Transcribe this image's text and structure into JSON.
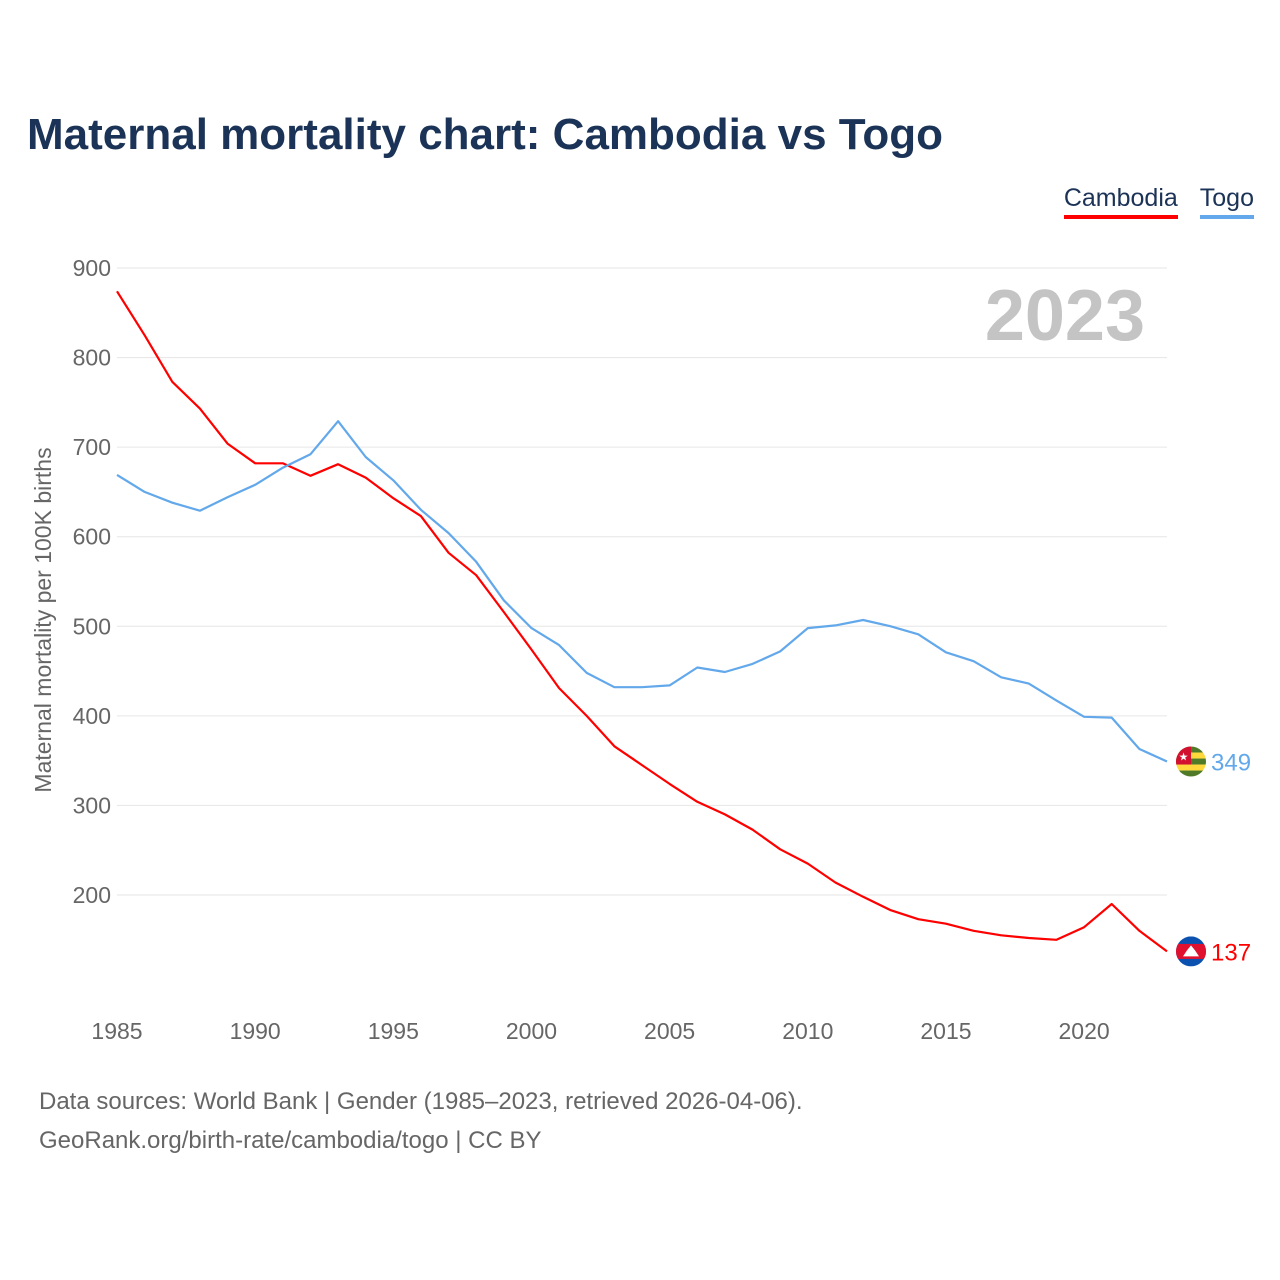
{
  "title": "Maternal mortality chart: Cambodia vs Togo",
  "footer": {
    "line1": "Data sources: World Bank | Gender (1985–2023, retrieved 2026-04-06).",
    "line2": "GeoRank.org/birth-rate/cambodia/togo | CC BY"
  },
  "chart_data": {
    "type": "line",
    "title": "Maternal mortality chart: Cambodia vs Togo",
    "ylabel": "Maternal mortality per 100K births",
    "xlabel": "",
    "year_label": "2023",
    "ylim": [
      100,
      900
    ],
    "yticks": [
      "200",
      "300",
      "400",
      "500",
      "600",
      "700",
      "800",
      "900"
    ],
    "xticks": [
      "1985",
      "1990",
      "1995",
      "2000",
      "2005",
      "2010",
      "2015",
      "2020"
    ],
    "grid": true,
    "legend_position": "top-right",
    "x": [
      1985,
      1986,
      1987,
      1988,
      1989,
      1990,
      1991,
      1992,
      1993,
      1994,
      1995,
      1996,
      1997,
      1998,
      1999,
      2000,
      2001,
      2002,
      2003,
      2004,
      2005,
      2006,
      2007,
      2008,
      2009,
      2010,
      2011,
      2012,
      2013,
      2014,
      2015,
      2016,
      2017,
      2018,
      2019,
      2020,
      2021,
      2022,
      2023
    ],
    "series": [
      {
        "name": "Cambodia",
        "color": "#ff0000",
        "end_label": "137",
        "values": [
          874,
          825,
          773,
          743,
          704,
          682,
          682,
          668,
          681,
          666,
          643,
          623,
          582,
          557,
          516,
          474,
          431,
          400,
          366,
          345,
          324,
          304,
          290,
          273,
          251,
          235,
          214,
          198,
          183,
          173,
          168,
          160,
          155,
          152,
          150,
          164,
          190,
          160,
          137
        ]
      },
      {
        "name": "Togo",
        "color": "#62a8ea",
        "end_label": "349",
        "values": [
          669,
          650,
          638,
          629,
          644,
          658,
          677,
          692,
          729,
          689,
          663,
          630,
          604,
          572,
          529,
          498,
          479,
          448,
          432,
          432,
          434,
          454,
          449,
          458,
          472,
          498,
          501,
          507,
          500,
          491,
          471,
          461,
          443,
          436,
          417,
          399,
          398,
          363,
          349
        ]
      }
    ]
  }
}
